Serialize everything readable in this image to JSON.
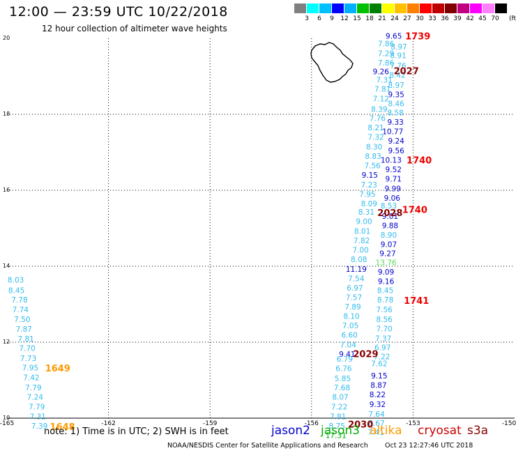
{
  "header": {
    "title": "12:00 — 23:59 UTC 10/22/2018",
    "subtitle": "12 hour collection of altimeter wave heights"
  },
  "colorbar": {
    "unit": "(ft)",
    "colors": [
      "#808080",
      "#00ffff",
      "#00c0ff",
      "#0000ff",
      "#00b0ff",
      "#00c000",
      "#008000",
      "#ffff00",
      "#ffc000",
      "#ff8000",
      "#ff0000",
      "#c00000",
      "#800000",
      "#c00080",
      "#ff00ff",
      "#ff80ff",
      "#000000"
    ],
    "labels": [
      "3",
      "6",
      "9",
      "12",
      "15",
      "18",
      "21",
      "24",
      "27",
      "30",
      "33",
      "36",
      "39",
      "42",
      "45",
      "70"
    ]
  },
  "axes": {
    "lat_labels": [
      "20",
      "18",
      "16",
      "14",
      "12",
      "10"
    ],
    "lon_labels": [
      "-165",
      "-162",
      "-159",
      "-156",
      "-153",
      "-150"
    ]
  },
  "satellites": {
    "colors": {
      "jason2": "#0000cc",
      "jason3": "#00aa00",
      "altika": "#ff9900",
      "cryosat": "#cc0000",
      "s3a": "#880000",
      "jason3light": "#33bbee"
    }
  },
  "tracks": [
    {
      "lon": -164.74,
      "lat": 13.64,
      "v": "8.03",
      "c": "lb"
    },
    {
      "lon": -164.72,
      "lat": 13.37,
      "v": "8.45",
      "c": "lb"
    },
    {
      "lon": -164.63,
      "lat": 13.12,
      "v": "7.78",
      "c": "lb"
    },
    {
      "lon": -164.6,
      "lat": 12.86,
      "v": "7.74",
      "c": "lb"
    },
    {
      "lon": -164.55,
      "lat": 12.61,
      "v": "7.50",
      "c": "lb"
    },
    {
      "lon": -164.5,
      "lat": 12.35,
      "v": "7.87",
      "c": "lb"
    },
    {
      "lon": -164.44,
      "lat": 12.09,
      "v": "7.81",
      "c": "lb"
    },
    {
      "lon": -164.4,
      "lat": 11.84,
      "v": "7.70",
      "c": "lb"
    },
    {
      "lon": -164.37,
      "lat": 11.58,
      "v": "7.73",
      "c": "lb"
    },
    {
      "lon": -164.31,
      "lat": 11.33,
      "v": "7.95",
      "c": "lb"
    },
    {
      "lon": -164.28,
      "lat": 11.07,
      "v": "7.42",
      "c": "lb"
    },
    {
      "lon": -164.22,
      "lat": 10.81,
      "v": "7.79",
      "c": "lb"
    },
    {
      "lon": -164.17,
      "lat": 10.56,
      "v": "7.24",
      "c": "lb"
    },
    {
      "lon": -164.12,
      "lat": 10.3,
      "v": "7.79",
      "c": "lb"
    },
    {
      "lon": -164.09,
      "lat": 10.05,
      "v": "7.31",
      "c": "lb"
    },
    {
      "lon": -164.04,
      "lat": 9.8,
      "v": "7.39",
      "c": "lb"
    },
    {
      "lon": -153.57,
      "lat": 20.06,
      "v": "9.65",
      "c": "b"
    },
    {
      "lon": -153.8,
      "lat": 19.86,
      "v": "7.86",
      "c": "lb"
    },
    {
      "lon": -153.42,
      "lat": 19.78,
      "v": "8.97",
      "c": "lb"
    },
    {
      "lon": -153.8,
      "lat": 19.61,
      "v": "7.29",
      "c": "lb"
    },
    {
      "lon": -153.44,
      "lat": 19.55,
      "v": "8.91",
      "c": "lb"
    },
    {
      "lon": -153.8,
      "lat": 19.36,
      "v": "7.86",
      "c": "lb"
    },
    {
      "lon": -153.44,
      "lat": 19.28,
      "v": "7.76",
      "c": "lb"
    },
    {
      "lon": -153.95,
      "lat": 19.13,
      "v": "9.26",
      "c": "b"
    },
    {
      "lon": -153.46,
      "lat": 19.04,
      "v": "8.42",
      "c": "lb"
    },
    {
      "lon": -153.85,
      "lat": 18.91,
      "v": "7.31",
      "c": "lb"
    },
    {
      "lon": -153.5,
      "lat": 18.77,
      "v": "8.97",
      "c": "lb"
    },
    {
      "lon": -153.9,
      "lat": 18.67,
      "v": "7.81",
      "c": "lb"
    },
    {
      "lon": -153.5,
      "lat": 18.52,
      "v": "9.35",
      "c": "b"
    },
    {
      "lon": -153.95,
      "lat": 18.41,
      "v": "7.12",
      "c": "lb"
    },
    {
      "lon": -153.5,
      "lat": 18.28,
      "v": "8.46",
      "c": "lb"
    },
    {
      "lon": -154.0,
      "lat": 18.14,
      "v": "8.39",
      "c": "lb"
    },
    {
      "lon": -153.52,
      "lat": 18.05,
      "v": "8.58",
      "c": "lb"
    },
    {
      "lon": -154.05,
      "lat": 17.9,
      "v": "7.76",
      "c": "lb"
    },
    {
      "lon": -153.52,
      "lat": 17.8,
      "v": "9.33",
      "c": "b"
    },
    {
      "lon": -154.1,
      "lat": 17.65,
      "v": "8.21",
      "c": "lb"
    },
    {
      "lon": -153.6,
      "lat": 17.55,
      "v": "10.77",
      "c": "b"
    },
    {
      "lon": -154.1,
      "lat": 17.4,
      "v": "7.32",
      "c": "lb"
    },
    {
      "lon": -153.5,
      "lat": 17.3,
      "v": "9.24",
      "c": "b"
    },
    {
      "lon": -154.15,
      "lat": 17.15,
      "v": "8.30",
      "c": "lb"
    },
    {
      "lon": -153.5,
      "lat": 17.05,
      "v": "9.56",
      "c": "b"
    },
    {
      "lon": -154.18,
      "lat": 16.9,
      "v": "8.83",
      "c": "lb"
    },
    {
      "lon": -153.65,
      "lat": 16.8,
      "v": "10.13",
      "c": "b"
    },
    {
      "lon": -154.2,
      "lat": 16.65,
      "v": "7.56",
      "c": "lb"
    },
    {
      "lon": -153.58,
      "lat": 16.55,
      "v": "9.52",
      "c": "b"
    },
    {
      "lon": -154.28,
      "lat": 16.4,
      "v": "9.15",
      "c": "b"
    },
    {
      "lon": -153.58,
      "lat": 16.3,
      "v": "9.71",
      "c": "b"
    },
    {
      "lon": -154.3,
      "lat": 16.15,
      "v": "7.23",
      "c": "lb"
    },
    {
      "lon": -153.6,
      "lat": 16.05,
      "v": "9.99",
      "c": "b"
    },
    {
      "lon": -154.35,
      "lat": 15.9,
      "v": "7.95",
      "c": "lb"
    },
    {
      "lon": -153.62,
      "lat": 15.8,
      "v": "9.06",
      "c": "b"
    },
    {
      "lon": -154.3,
      "lat": 15.65,
      "v": "8.09",
      "c": "lb"
    },
    {
      "lon": -153.72,
      "lat": 15.6,
      "v": "8.53",
      "c": "lb"
    },
    {
      "lon": -154.38,
      "lat": 15.43,
      "v": "8.31",
      "c": "lb"
    },
    {
      "lon": -153.68,
      "lat": 15.32,
      "v": "9.01",
      "c": "b"
    },
    {
      "lon": -154.45,
      "lat": 15.18,
      "v": "9.00",
      "c": "lb"
    },
    {
      "lon": -153.68,
      "lat": 15.07,
      "v": "9.88",
      "c": "b"
    },
    {
      "lon": -154.5,
      "lat": 14.93,
      "v": "8.01",
      "c": "lb"
    },
    {
      "lon": -153.72,
      "lat": 14.83,
      "v": "8.90",
      "c": "lb"
    },
    {
      "lon": -154.52,
      "lat": 14.68,
      "v": "7.82",
      "c": "lb"
    },
    {
      "lon": -153.72,
      "lat": 14.58,
      "v": "9.07",
      "c": "b"
    },
    {
      "lon": -154.55,
      "lat": 14.43,
      "v": "7.00",
      "c": "lb"
    },
    {
      "lon": -153.75,
      "lat": 14.34,
      "v": "9.27",
      "c": "b"
    },
    {
      "lon": -154.6,
      "lat": 14.18,
      "v": "8.08",
      "c": "lb"
    },
    {
      "lon": -153.8,
      "lat": 14.1,
      "v": "13.76",
      "c": "lg"
    },
    {
      "lon": -154.68,
      "lat": 13.93,
      "v": "11.19",
      "c": "b"
    },
    {
      "lon": -153.8,
      "lat": 13.85,
      "v": "9.09",
      "c": "b"
    },
    {
      "lon": -154.68,
      "lat": 13.68,
      "v": "7.54",
      "c": "lb"
    },
    {
      "lon": -153.8,
      "lat": 13.61,
      "v": "9.16",
      "c": "b"
    },
    {
      "lon": -154.72,
      "lat": 13.43,
      "v": "6.97",
      "c": "lb"
    },
    {
      "lon": -153.82,
      "lat": 13.37,
      "v": "8.45",
      "c": "lb"
    },
    {
      "lon": -154.75,
      "lat": 13.18,
      "v": "7.57",
      "c": "lb"
    },
    {
      "lon": -153.82,
      "lat": 13.12,
      "v": "8.78",
      "c": "lb"
    },
    {
      "lon": -154.78,
      "lat": 12.94,
      "v": "7.89",
      "c": "lb"
    },
    {
      "lon": -153.85,
      "lat": 12.86,
      "v": "7.56",
      "c": "lb"
    },
    {
      "lon": -154.82,
      "lat": 12.69,
      "v": "8.10",
      "c": "lb"
    },
    {
      "lon": -153.85,
      "lat": 12.61,
      "v": "8.56",
      "c": "lb"
    },
    {
      "lon": -154.85,
      "lat": 12.44,
      "v": "7.05",
      "c": "lb"
    },
    {
      "lon": -153.85,
      "lat": 12.36,
      "v": "7.70",
      "c": "lb"
    },
    {
      "lon": -154.88,
      "lat": 12.19,
      "v": "6.60",
      "c": "lb"
    },
    {
      "lon": -153.88,
      "lat": 12.1,
      "v": "7.37",
      "c": "lb"
    },
    {
      "lon": -154.92,
      "lat": 11.94,
      "v": "7.04",
      "c": "lb"
    },
    {
      "lon": -153.9,
      "lat": 11.86,
      "v": "6.97",
      "c": "lb"
    },
    {
      "lon": -154.95,
      "lat": 11.69,
      "v": "9.41",
      "c": "b"
    },
    {
      "lon": -153.92,
      "lat": 11.62,
      "v": "7.22",
      "c": "lb"
    },
    {
      "lon": -155.02,
      "lat": 11.56,
      "v": "6.79",
      "c": "lb"
    },
    {
      "lon": -154.0,
      "lat": 11.44,
      "v": "7.62",
      "c": "lb"
    },
    {
      "lon": -155.05,
      "lat": 11.31,
      "v": "6.76",
      "c": "lb"
    },
    {
      "lon": -154.0,
      "lat": 11.12,
      "v": "9.15",
      "c": "b"
    },
    {
      "lon": -155.08,
      "lat": 11.05,
      "v": "5.85",
      "c": "lb"
    },
    {
      "lon": -154.02,
      "lat": 10.87,
      "v": "8.87",
      "c": "b"
    },
    {
      "lon": -155.1,
      "lat": 10.81,
      "v": "7.68",
      "c": "lb"
    },
    {
      "lon": -154.05,
      "lat": 10.62,
      "v": "8.22",
      "c": "b"
    },
    {
      "lon": -155.15,
      "lat": 10.56,
      "v": "8.07",
      "c": "lb"
    },
    {
      "lon": -154.05,
      "lat": 10.37,
      "v": "9.32",
      "c": "b"
    },
    {
      "lon": -155.18,
      "lat": 10.3,
      "v": "7.22",
      "c": "lb"
    },
    {
      "lon": -154.08,
      "lat": 10.11,
      "v": "7.64",
      "c": "lb"
    },
    {
      "lon": -155.22,
      "lat": 10.05,
      "v": "7.81",
      "c": "lb"
    },
    {
      "lon": -154.08,
      "lat": 9.87,
      "v": "8.67",
      "c": "lb"
    },
    {
      "lon": -155.25,
      "lat": 9.8,
      "v": "8.75",
      "c": "lb"
    },
    {
      "lon": -154.1,
      "lat": 9.63,
      "v": "7.41",
      "c": "lb"
    },
    {
      "lon": -155.28,
      "lat": 9.55,
      "v": "17.31",
      "c": "g"
    }
  ],
  "times": [
    {
      "lon": -152.86,
      "lat": 20.06,
      "t": "1739",
      "c": "r"
    },
    {
      "lon": -153.2,
      "lat": 19.15,
      "t": "2027",
      "c": "dr"
    },
    {
      "lon": -152.82,
      "lat": 16.8,
      "t": "1740",
      "c": "r"
    },
    {
      "lon": -152.95,
      "lat": 15.5,
      "t": "1740",
      "c": "r"
    },
    {
      "lon": -153.68,
      "lat": 15.41,
      "t": "2028",
      "c": "dr"
    },
    {
      "lon": -152.9,
      "lat": 13.1,
      "t": "1741",
      "c": "r"
    },
    {
      "lon": -154.4,
      "lat": 11.7,
      "t": "2029",
      "c": "dr"
    },
    {
      "lon": -163.5,
      "lat": 11.32,
      "t": "1649",
      "c": "o"
    },
    {
      "lon": -163.36,
      "lat": 9.78,
      "t": "1648",
      "c": "o"
    },
    {
      "lon": -154.55,
      "lat": 9.84,
      "t": "2030",
      "c": "dr"
    }
  ],
  "footer": {
    "note": "note: 1) Time is in UTC; 2) SWH is in feet",
    "sat_labels": [
      "jason2",
      "jason3",
      "altika",
      "cryosat",
      "s3a"
    ],
    "credit": "NOAA/NESDIS Center for Satellite Applications and Research",
    "timestamp": "Oct 23 12:27:46 UTC 2018"
  }
}
